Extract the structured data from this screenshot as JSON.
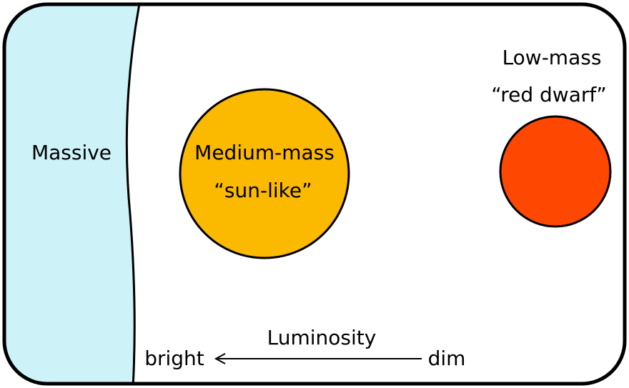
{
  "stars": [
    {
      "label": "Massive"
    },
    {
      "label": "Medium-mass",
      "sublabel": "“sun-like”"
    },
    {
      "label": "Low-mass",
      "sublabel": "“red dwarf”"
    }
  ],
  "axis": {
    "label": "Luminosity",
    "left": "bright",
    "right": "dim"
  }
}
